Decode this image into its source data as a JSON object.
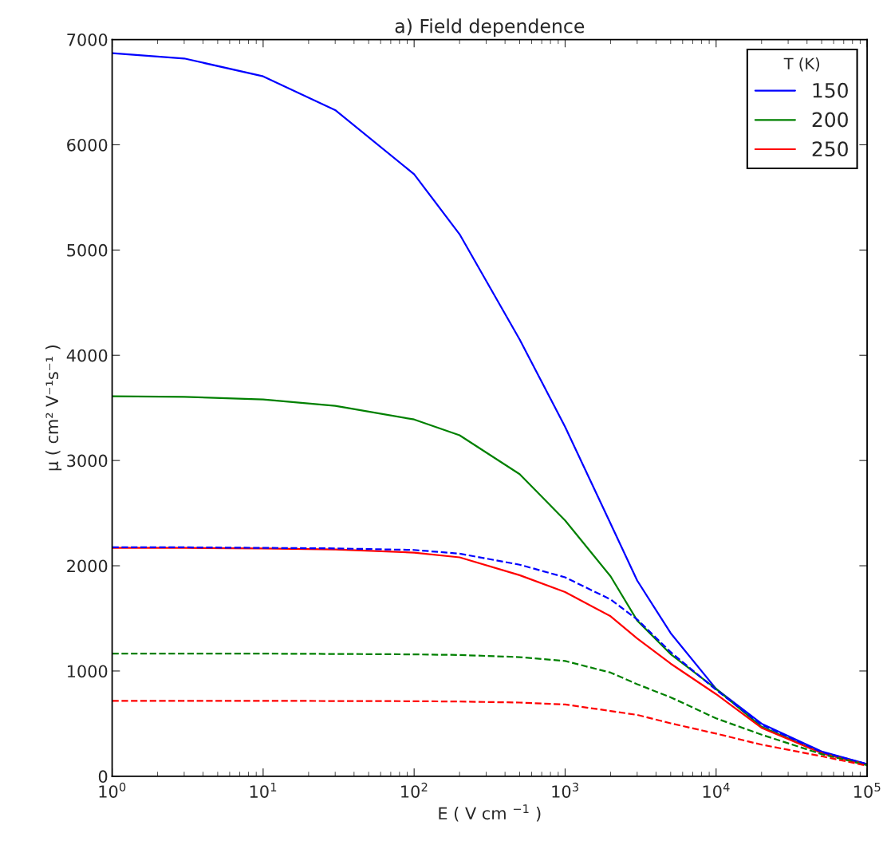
{
  "chart_data": {
    "type": "line",
    "title": "a) Field dependence",
    "xlabel": "E ( V cm $^{−1}$ )",
    "ylabel": "μ ( cm² V⁻¹s⁻¹ )",
    "legend_title": "T (K)",
    "x": [
      1,
      3,
      10,
      30,
      100,
      200,
      500,
      1000,
      2000,
      3000,
      5000,
      10000,
      20000,
      50000,
      100000
    ],
    "series": [
      {
        "name": "150",
        "color": "#0000ff",
        "line_style": "solid",
        "values": [
          6870,
          6820,
          6650,
          6330,
          5720,
          5150,
          4150,
          3320,
          2400,
          1860,
          1360,
          830,
          500,
          235,
          115
        ]
      },
      {
        "name": "200",
        "color": "#008000",
        "line_style": "solid",
        "values": [
          3610,
          3605,
          3580,
          3520,
          3390,
          3240,
          2870,
          2430,
          1900,
          1480,
          1160,
          830,
          470,
          220,
          110
        ]
      },
      {
        "name": "250",
        "color": "#ff0000",
        "line_style": "solid",
        "values": [
          2170,
          2170,
          2165,
          2155,
          2125,
          2080,
          1910,
          1750,
          1520,
          1310,
          1070,
          780,
          460,
          220,
          109
        ]
      },
      {
        "color": "#0000ff",
        "line_style": "dashed",
        "values": [
          2175,
          2175,
          2170,
          2165,
          2150,
          2115,
          2010,
          1890,
          1680,
          1490,
          1180,
          820,
          490,
          230,
          115
        ]
      },
      {
        "color": "#008000",
        "line_style": "dashed",
        "values": [
          1165,
          1165,
          1165,
          1162,
          1158,
          1152,
          1132,
          1095,
          985,
          875,
          750,
          550,
          395,
          210,
          105
        ]
      },
      {
        "color": "#ff0000",
        "line_style": "dashed",
        "values": [
          717,
          717,
          716,
          715,
          713,
          710,
          700,
          682,
          620,
          583,
          503,
          405,
          300,
          190,
          100
        ]
      }
    ],
    "log": "x",
    "xlim": [
      1,
      100000
    ],
    "xticks": [
      {
        "value": 1,
        "label": "10$^{0}$"
      },
      {
        "value": 10,
        "label": "10$^{1}$"
      },
      {
        "value": 100,
        "label": "10$^{2}$"
      },
      {
        "value": 1000,
        "label": "10$^{3}$"
      },
      {
        "value": 10000,
        "label": "10$^{4}$"
      },
      {
        "value": 100000,
        "label": "10$^{5}$"
      }
    ],
    "ylim": [
      0,
      7000
    ],
    "yticks": [
      0,
      1000,
      2000,
      3000,
      4000,
      5000,
      6000,
      7000
    ],
    "grid": false,
    "legend": "top right"
  }
}
